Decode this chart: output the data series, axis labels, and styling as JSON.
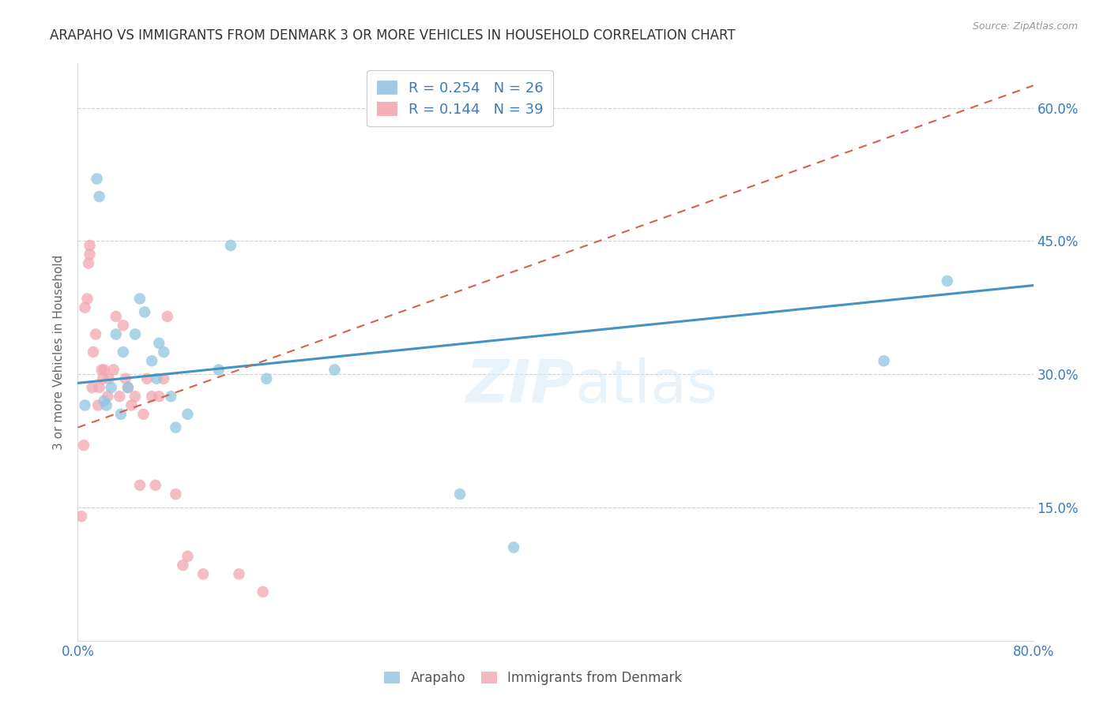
{
  "title": "ARAPAHO VS IMMIGRANTS FROM DENMARK 3 OR MORE VEHICLES IN HOUSEHOLD CORRELATION CHART",
  "source": "Source: ZipAtlas.com",
  "ylabel": "3 or more Vehicles in Household",
  "xmin": 0.0,
  "xmax": 0.8,
  "ymin": 0.0,
  "ymax": 0.65,
  "x_ticks": [
    0.0,
    0.1,
    0.2,
    0.3,
    0.4,
    0.5,
    0.6,
    0.7,
    0.8
  ],
  "x_tick_labels": [
    "0.0%",
    "",
    "",
    "",
    "",
    "",
    "",
    "",
    "80.0%"
  ],
  "y_ticks": [
    0.0,
    0.15,
    0.3,
    0.45,
    0.6
  ],
  "right_y_tick_labels": [
    "",
    "15.0%",
    "30.0%",
    "45.0%",
    "60.0%"
  ],
  "arapaho_color": "#92c5de",
  "denmark_color": "#f4a6b0",
  "arapaho_line_color": "#4393c3",
  "denmark_line_color": "#d6604d",
  "watermark_color": "#d6eaf8",
  "arapaho_x": [
    0.006,
    0.016,
    0.018,
    0.022,
    0.024,
    0.028,
    0.032,
    0.036,
    0.038,
    0.042,
    0.048,
    0.052,
    0.056,
    0.062,
    0.066,
    0.068,
    0.072,
    0.078,
    0.082,
    0.092,
    0.118,
    0.128,
    0.158,
    0.215,
    0.32,
    0.365,
    0.675,
    0.728
  ],
  "arapaho_y": [
    0.265,
    0.52,
    0.5,
    0.27,
    0.265,
    0.285,
    0.345,
    0.255,
    0.325,
    0.285,
    0.345,
    0.385,
    0.37,
    0.315,
    0.295,
    0.335,
    0.325,
    0.275,
    0.24,
    0.255,
    0.305,
    0.445,
    0.295,
    0.305,
    0.165,
    0.105,
    0.315,
    0.405
  ],
  "denmark_x": [
    0.003,
    0.005,
    0.006,
    0.008,
    0.009,
    0.01,
    0.01,
    0.012,
    0.013,
    0.015,
    0.017,
    0.018,
    0.02,
    0.021,
    0.022,
    0.025,
    0.026,
    0.03,
    0.032,
    0.035,
    0.038,
    0.04,
    0.042,
    0.045,
    0.048,
    0.052,
    0.055,
    0.058,
    0.062,
    0.065,
    0.068,
    0.072,
    0.075,
    0.082,
    0.088,
    0.092,
    0.105,
    0.135,
    0.155
  ],
  "denmark_y": [
    0.14,
    0.22,
    0.375,
    0.385,
    0.425,
    0.435,
    0.445,
    0.285,
    0.325,
    0.345,
    0.265,
    0.285,
    0.305,
    0.295,
    0.305,
    0.275,
    0.295,
    0.305,
    0.365,
    0.275,
    0.355,
    0.295,
    0.285,
    0.265,
    0.275,
    0.175,
    0.255,
    0.295,
    0.275,
    0.175,
    0.275,
    0.295,
    0.365,
    0.165,
    0.085,
    0.095,
    0.075,
    0.075,
    0.055
  ],
  "ara_line_x0": 0.0,
  "ara_line_y0": 0.29,
  "ara_line_x1": 0.8,
  "ara_line_y1": 0.4,
  "den_line_x0": 0.0,
  "den_line_y0": 0.24,
  "den_line_x1": 0.8,
  "den_line_y1": 0.625
}
